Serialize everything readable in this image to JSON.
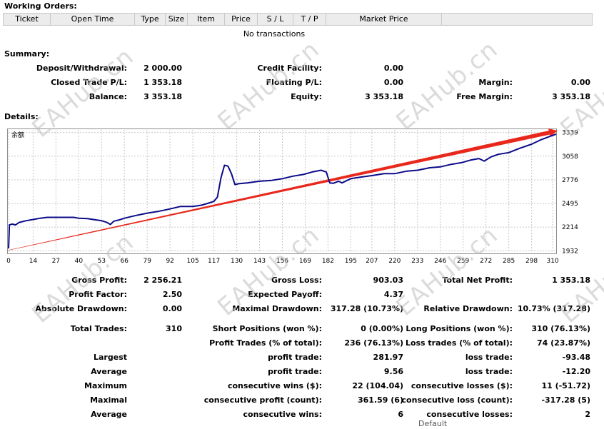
{
  "working_orders": {
    "title": "Working Orders:",
    "columns": [
      "Ticket",
      "Open Time",
      "Type",
      "Size",
      "Item",
      "Price",
      "S / L",
      "T / P",
      "Market Price",
      ""
    ],
    "empty_text": "No transactions"
  },
  "summary": {
    "title": "Summary:",
    "deposit_label": "Deposit/Withdrawal:",
    "deposit_value": "2 000.00",
    "credit_label": "Credit Facility:",
    "credit_value": "0.00",
    "closed_pl_label": "Closed Trade P/L:",
    "closed_pl_value": "1 353.18",
    "floating_pl_label": "Floating P/L:",
    "floating_pl_value": "0.00",
    "margin_label": "Margin:",
    "margin_value": "0.00",
    "balance_label": "Balance:",
    "balance_value": "3 353.18",
    "equity_label": "Equity:",
    "equity_value": "3 353.18",
    "free_margin_label": "Free Margin:",
    "free_margin_value": "3 353.18"
  },
  "details": {
    "title": "Details:"
  },
  "chart_data": {
    "type": "line",
    "series": [
      {
        "name": "余额",
        "values": [
          [
            0,
            1960
          ],
          [
            0.5,
            2240
          ],
          [
            2,
            2250
          ],
          [
            4,
            2240
          ],
          [
            6,
            2270
          ],
          [
            10,
            2290
          ],
          [
            14,
            2305
          ],
          [
            18,
            2320
          ],
          [
            22,
            2330
          ],
          [
            27,
            2330
          ],
          [
            32,
            2330
          ],
          [
            37,
            2330
          ],
          [
            40,
            2320
          ],
          [
            45,
            2315
          ],
          [
            50,
            2300
          ],
          [
            53,
            2290
          ],
          [
            56,
            2270
          ],
          [
            58,
            2245
          ],
          [
            60,
            2285
          ],
          [
            63,
            2300
          ],
          [
            66,
            2320
          ],
          [
            72,
            2350
          ],
          [
            79,
            2380
          ],
          [
            85,
            2400
          ],
          [
            92,
            2430
          ],
          [
            98,
            2460
          ],
          [
            105,
            2460
          ],
          [
            110,
            2475
          ],
          [
            114,
            2500
          ],
          [
            117,
            2520
          ],
          [
            119,
            2570
          ],
          [
            121,
            2800
          ],
          [
            123,
            2950
          ],
          [
            125,
            2940
          ],
          [
            127,
            2850
          ],
          [
            129,
            2720
          ],
          [
            131,
            2730
          ],
          [
            136,
            2740
          ],
          [
            143,
            2760
          ],
          [
            150,
            2770
          ],
          [
            156,
            2790
          ],
          [
            162,
            2820
          ],
          [
            168,
            2840
          ],
          [
            173,
            2870
          ],
          [
            178,
            2890
          ],
          [
            181,
            2870
          ],
          [
            183,
            2740
          ],
          [
            185,
            2735
          ],
          [
            188,
            2760
          ],
          [
            190,
            2740
          ],
          [
            195,
            2790
          ],
          [
            201,
            2810
          ],
          [
            208,
            2830
          ],
          [
            214,
            2850
          ],
          [
            220,
            2850
          ],
          [
            227,
            2880
          ],
          [
            233,
            2890
          ],
          [
            240,
            2920
          ],
          [
            246,
            2930
          ],
          [
            252,
            2960
          ],
          [
            258,
            2980
          ],
          [
            263,
            3010
          ],
          [
            268,
            3030
          ],
          [
            271,
            3000
          ],
          [
            275,
            3050
          ],
          [
            279,
            3080
          ],
          [
            285,
            3100
          ],
          [
            291,
            3150
          ],
          [
            298,
            3200
          ],
          [
            303,
            3250
          ],
          [
            308,
            3290
          ],
          [
            312,
            3320
          ]
        ]
      }
    ],
    "x_ticks": [
      0,
      14,
      27,
      40,
      53,
      66,
      79,
      92,
      105,
      117,
      130,
      143,
      156,
      169,
      182,
      195,
      207,
      220,
      233,
      246,
      259,
      272,
      285,
      298,
      310
    ],
    "y_ticks": [
      1932,
      2214,
      2495,
      2776,
      3058,
      3339
    ],
    "xlim": [
      0,
      312
    ],
    "ylim": [
      1910,
      3370
    ],
    "trend_arrow": {
      "from": [
        0,
        1940
      ],
      "to": [
        312,
        3360
      ],
      "color": "#e8281c"
    },
    "line_color": "#0b0b8a",
    "grid": true
  },
  "stats": {
    "gross_profit_label": "Gross Profit:",
    "gross_profit_value": "2 256.21",
    "gross_loss_label": "Gross Loss:",
    "gross_loss_value": "903.03",
    "total_net_profit_label": "Total Net Profit:",
    "total_net_profit_value": "1 353.18",
    "profit_factor_label": "Profit Factor:",
    "profit_factor_value": "2.50",
    "expected_payoff_label": "Expected Payoff:",
    "expected_payoff_value": "4.37",
    "absolute_drawdown_label": "Absolute Drawdown:",
    "absolute_drawdown_value": "0.00",
    "maximal_drawdown_label": "Maximal Drawdown:",
    "maximal_drawdown_value": "317.28 (10.73%)",
    "relative_drawdown_label": "Relative Drawdown:",
    "relative_drawdown_value": "10.73% (317.28)",
    "total_trades_label": "Total Trades:",
    "total_trades_value": "310",
    "short_positions_label": "Short Positions (won %):",
    "short_positions_value": "0 (0.00%)",
    "long_positions_label": "Long Positions (won %):",
    "long_positions_value": "310 (76.13%)",
    "profit_trades_label": "Profit Trades (% of total):",
    "profit_trades_value": "236 (76.13%)",
    "loss_trades_label": "Loss trades (% of total):",
    "loss_trades_value": "74 (23.87%)",
    "largest_label": "Largest",
    "largest_profit_label": "profit trade:",
    "largest_profit_value": "281.97",
    "largest_loss_label": "loss trade:",
    "largest_loss_value": "-93.48",
    "average_label": "Average",
    "average_profit_label": "profit trade:",
    "average_profit_value": "9.56",
    "average_loss_label": "loss trade:",
    "average_loss_value": "-12.20",
    "maximum_label": "Maximum",
    "max_cons_wins_label": "consecutive wins ($):",
    "max_cons_wins_value": "22 (104.04)",
    "max_cons_losses_label": "consecutive losses ($):",
    "max_cons_losses_value": "11 (-51.72)",
    "maximal_label": "Maximal",
    "max_cons_profit_label": "consecutive profit (count):",
    "max_cons_profit_value": "361.59 (6)",
    "max_cons_loss_label": "consecutive loss (count):",
    "max_cons_loss_value": "-317.28 (5)",
    "average2_label": "Average",
    "avg_cons_wins_label": "consecutive wins:",
    "avg_cons_wins_value": "6",
    "avg_cons_losses_label": "consecutive losses:",
    "avg_cons_losses_value": "2"
  },
  "watermark": {
    "text": "EAHub.cn"
  },
  "footer_partial": {
    "text": "Default"
  }
}
